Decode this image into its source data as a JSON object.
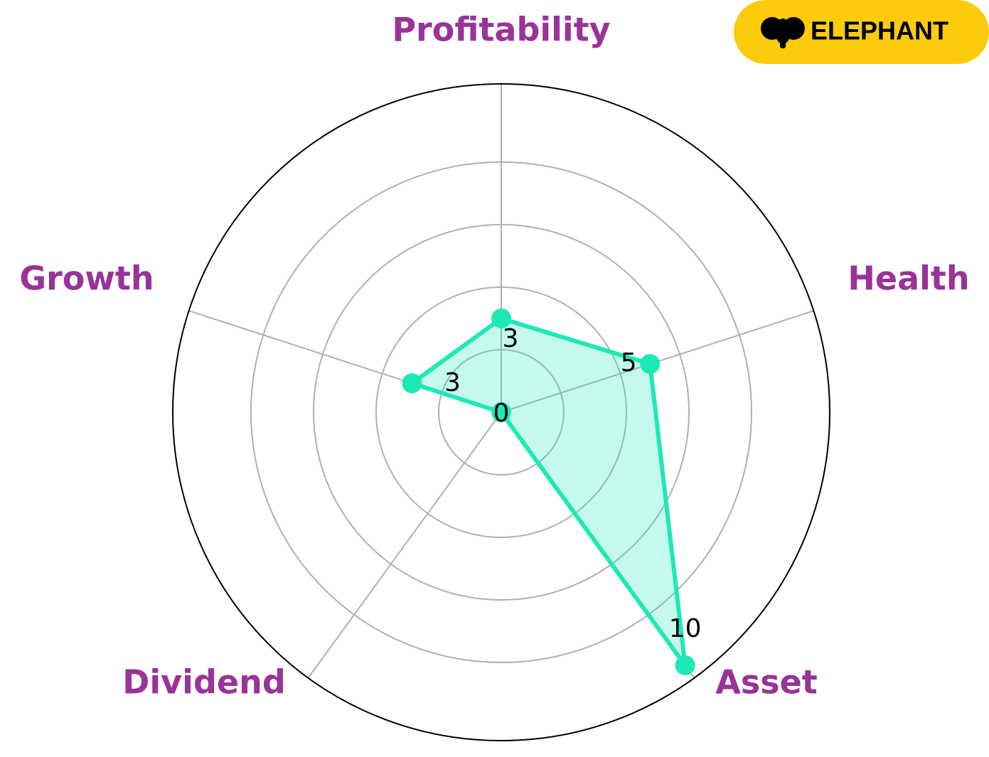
{
  "chart_data": {
    "type": "radar",
    "categories": [
      "Profitability",
      "Health",
      "Asset",
      "Dividend",
      "Growth"
    ],
    "values": [
      3,
      5,
      10,
      0,
      3
    ],
    "color": "#1de9b6",
    "label_color": "#993399",
    "ylim": [
      0,
      10.5
    ],
    "yticks": [
      2,
      4,
      6,
      8
    ],
    "grid": true
  },
  "logo": {
    "text": "ELEPHANT"
  }
}
